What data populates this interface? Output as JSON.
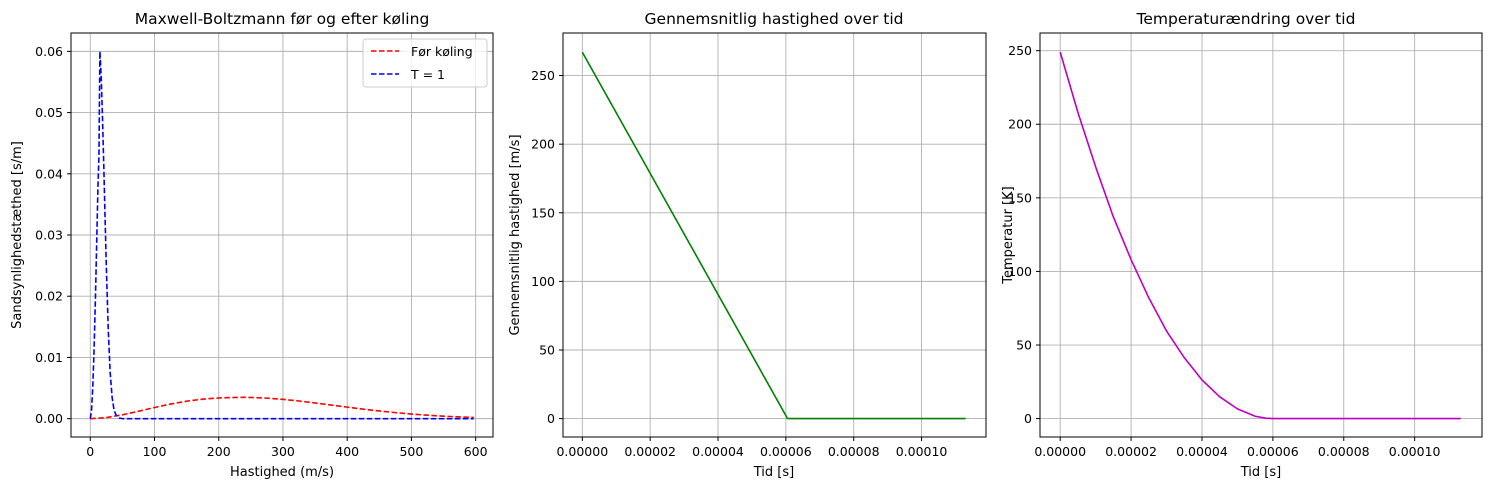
{
  "chart_data": [
    {
      "type": "line",
      "title": "Maxwell-Boltzmann før og efter køling",
      "xlabel": "Hastighed (m/s)",
      "ylabel": "Sandsynlighedstæthed [s/m]",
      "xlim": [
        -30,
        627
      ],
      "ylim": [
        -0.003,
        0.063
      ],
      "xticks": [
        0,
        100,
        200,
        300,
        400,
        500,
        600
      ],
      "xtick_labels": [
        "0",
        "100",
        "200",
        "300",
        "400",
        "500",
        "600"
      ],
      "yticks": [
        0,
        0.01,
        0.02,
        0.03,
        0.04,
        0.05,
        0.06
      ],
      "ytick_labels": [
        "0.00",
        "0.01",
        "0.02",
        "0.03",
        "0.04",
        "0.05",
        "0.06"
      ],
      "grid": true,
      "legend_position": "top-right",
      "series": [
        {
          "name": "Før køling",
          "color": "#ff0000",
          "dash": "dashed",
          "x": [
            0,
            25,
            50,
            75,
            100,
            125,
            150,
            175,
            200,
            225,
            240,
            250,
            275,
            300,
            325,
            350,
            375,
            400,
            425,
            450,
            475,
            500,
            525,
            550,
            575,
            597
          ],
          "y": [
            0,
            0.00017,
            0.00062,
            0.0012,
            0.00182,
            0.00238,
            0.00285,
            0.00318,
            0.00338,
            0.00346,
            0.00348,
            0.00346,
            0.00335,
            0.00315,
            0.00288,
            0.00256,
            0.00222,
            0.00188,
            0.00155,
            0.00125,
            0.00098,
            0.00075,
            0.00056,
            0.0004,
            0.00028,
            0.0002
          ]
        },
        {
          "name": "T = 1",
          "color": "#0000ff",
          "dash": "dashed",
          "x": [
            0,
            2,
            4,
            6,
            8,
            10,
            12,
            13.5,
            15,
            17,
            19,
            21,
            23,
            25,
            28,
            31,
            34,
            37,
            40,
            45,
            50,
            100,
            200,
            300,
            400,
            500,
            597
          ],
          "y": [
            0,
            0.0014,
            0.0054,
            0.0116,
            0.0196,
            0.0287,
            0.0381,
            0.0429,
            0.06,
            0.0558,
            0.0493,
            0.0414,
            0.033,
            0.0248,
            0.0145,
            0.0075,
            0.0035,
            0.0014,
            0.0006,
            0.0001,
            0,
            0,
            0,
            0,
            0,
            0,
            0
          ]
        }
      ]
    },
    {
      "type": "line",
      "title": "Gennemsnitlig hastighed over tid",
      "xlabel": "Tid [s]",
      "ylabel": "Gennemsnitlig hastighed [m/s]",
      "xlim": [
        -5.7e-06,
        0.000119
      ],
      "ylim": [
        -13.4,
        281
      ],
      "xticks": [
        0,
        2e-05,
        4e-05,
        6e-05,
        8e-05,
        0.0001
      ],
      "xtick_labels": [
        "0.00000",
        "0.00002",
        "0.00004",
        "0.00006",
        "0.00008",
        "0.00010"
      ],
      "yticks": [
        0,
        50,
        100,
        150,
        200,
        250
      ],
      "ytick_labels": [
        "0",
        "50",
        "100",
        "150",
        "200",
        "250"
      ],
      "grid": true,
      "series": [
        {
          "color": "#008000",
          "dash": "solid",
          "x": [
            0,
            6.05e-05,
            0.000113
          ],
          "y": [
            267,
            0,
            0
          ]
        }
      ]
    },
    {
      "type": "line",
      "title": "Temperaturændring over tid",
      "xlabel": "Tid [s]",
      "ylabel": "Temperatur [K]",
      "xlim": [
        -5.7e-06,
        0.000119
      ],
      "ylim": [
        -12.5,
        262
      ],
      "xticks": [
        0,
        2e-05,
        4e-05,
        6e-05,
        8e-05,
        0.0001
      ],
      "xtick_labels": [
        "0.00000",
        "0.00002",
        "0.00004",
        "0.00006",
        "0.00008",
        "0.00010"
      ],
      "yticks": [
        0,
        50,
        100,
        150,
        200,
        250
      ],
      "ytick_labels": [
        "0",
        "50",
        "100",
        "150",
        "200",
        "250"
      ],
      "grid": true,
      "series": [
        {
          "color": "#bf00bf",
          "dash": "solid",
          "x": [
            0,
            5e-06,
            1e-05,
            1.5e-05,
            2e-05,
            2.5e-05,
            3e-05,
            3.5e-05,
            4e-05,
            4.5e-05,
            5e-05,
            5.5e-05,
            5.8e-05,
            6e-05,
            7e-05,
            8e-05,
            9e-05,
            0.0001,
            0.000113
          ],
          "y": [
            249,
            208,
            171,
            137,
            108,
            82,
            59.5,
            41.4,
            26.3,
            14.8,
            6.6,
            1.6,
            0.3,
            0,
            0,
            0,
            0,
            0,
            0
          ]
        }
      ]
    }
  ]
}
